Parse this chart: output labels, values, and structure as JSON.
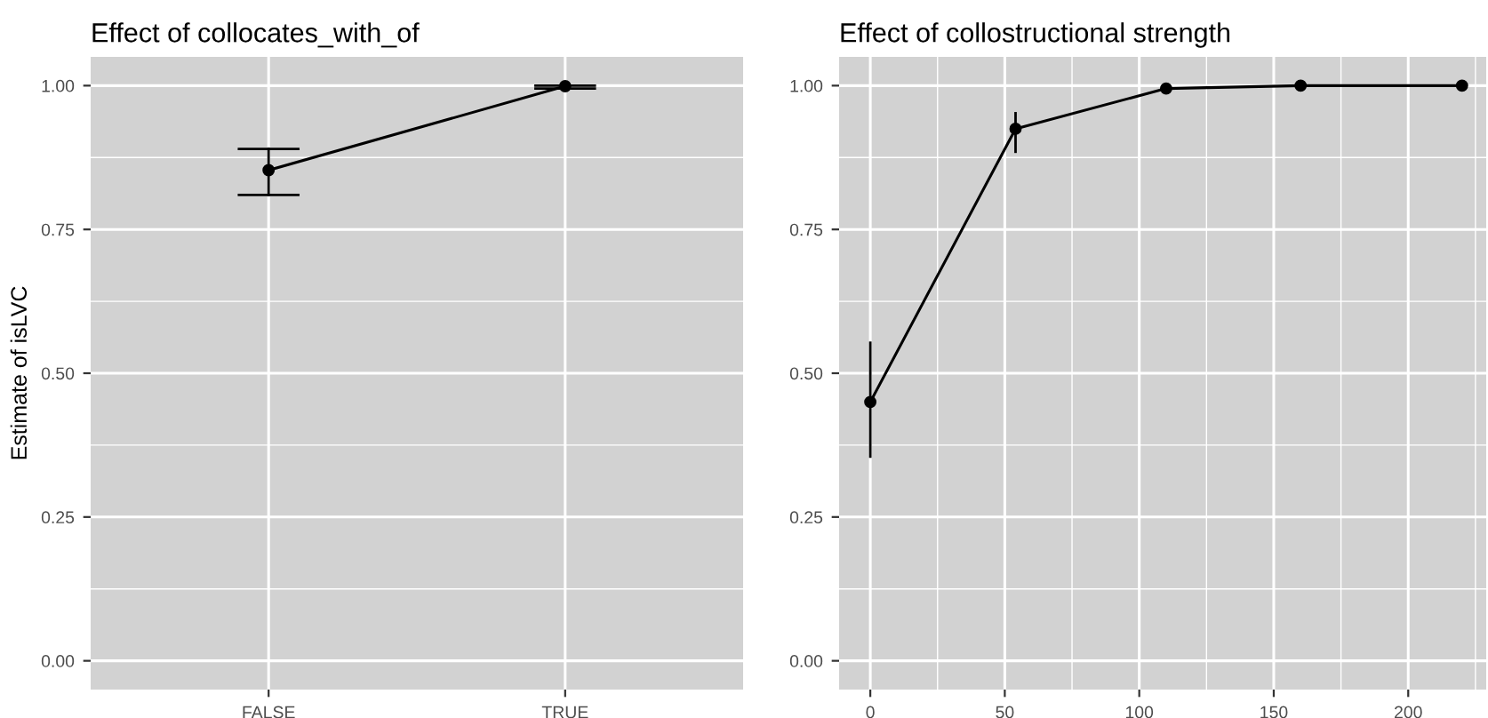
{
  "chart_data": [
    {
      "type": "line",
      "title": "Effect of collocates_with_of",
      "ylabel": "Estimate of isLVC",
      "categories": [
        "FALSE",
        "TRUE"
      ],
      "marker": "circle",
      "grid": true,
      "ylim": [
        -0.05,
        1.05
      ],
      "yticks": [
        {
          "value": 0,
          "label": "0.00"
        },
        {
          "value": 0.25,
          "label": "0.25"
        },
        {
          "value": 0.5,
          "label": "0.50"
        },
        {
          "value": 0.75,
          "label": "0.75"
        },
        {
          "value": 1,
          "label": "1.00"
        }
      ],
      "series": [
        {
          "color": "#000000",
          "values": [
            0.853,
            0.999
          ],
          "errors": [
            [
              0.81,
              0.89
            ],
            [
              0.995,
              1.0
            ]
          ]
        }
      ]
    },
    {
      "type": "line",
      "title": "Effect of collostructional strength",
      "x": [
        0,
        54,
        110,
        160,
        220
      ],
      "marker": "circle",
      "grid": true,
      "xlim": [
        -11.6,
        229
      ],
      "xticks": [
        0,
        50,
        100,
        150,
        200
      ],
      "ylim": [
        -0.05,
        1.05
      ],
      "yticks": [
        {
          "value": 0,
          "label": "0.00"
        },
        {
          "value": 0.25,
          "label": "0.25"
        },
        {
          "value": 0.5,
          "label": "0.50"
        },
        {
          "value": 0.75,
          "label": "0.75"
        },
        {
          "value": 1,
          "label": "1.00"
        }
      ],
      "series": [
        {
          "color": "#000000",
          "values": [
            0.45,
            0.925,
            0.995,
            1.0,
            1.0
          ],
          "errors": [
            [
              0.355,
              0.553
            ],
            [
              0.885,
              0.952
            ],
            null,
            null,
            null
          ]
        }
      ]
    }
  ]
}
